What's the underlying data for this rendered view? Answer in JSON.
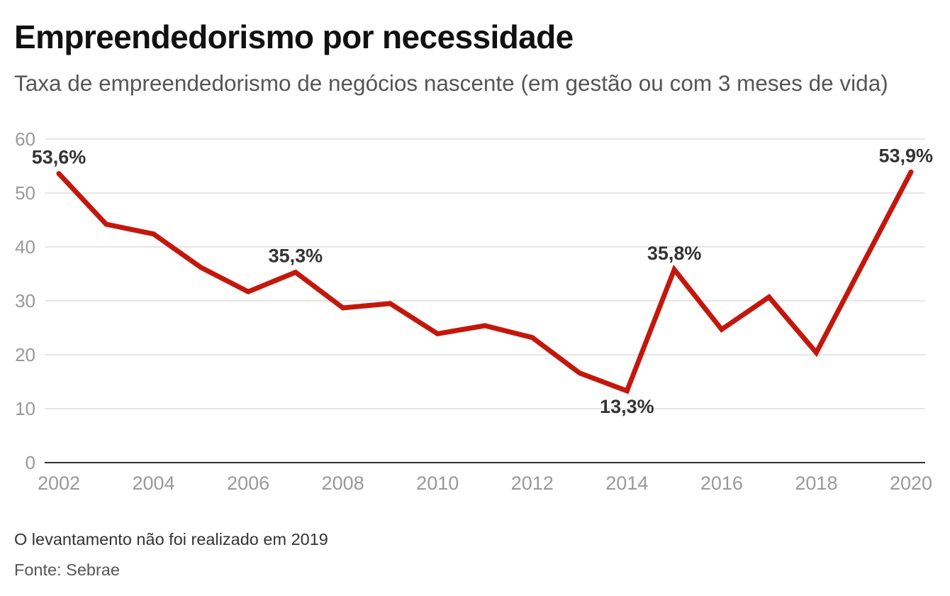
{
  "colors": {
    "background": "#ffffff",
    "line": "#c4170c",
    "grid": "#dedede",
    "axis": "#333333",
    "tick_text": "#999999",
    "data_label": "#333333",
    "title": "#111111",
    "subtitle": "#555555",
    "note": "#333333",
    "source": "#555555"
  },
  "chart_data": {
    "type": "line",
    "title": "Empreendedorismo por necessidade",
    "subtitle": "Taxa de empreendedorismo de negócios nascente (em gestão ou com 3 meses de vida)",
    "x": [
      2002,
      2003,
      2004,
      2005,
      2006,
      2007,
      2008,
      2009,
      2010,
      2011,
      2012,
      2013,
      2014,
      2015,
      2016,
      2017,
      2018,
      2019,
      2020
    ],
    "series": [
      {
        "values": [
          53.6,
          44.2,
          42.4,
          36.2,
          31.7,
          35.3,
          28.7,
          29.5,
          23.9,
          25.4,
          23.2,
          16.6,
          13.3,
          35.8,
          24.7,
          30.7,
          20.4,
          null,
          53.9
        ]
      }
    ],
    "xlim": [
      2002,
      2020
    ],
    "xticks": [
      2002,
      2004,
      2006,
      2008,
      2010,
      2012,
      2014,
      2016,
      2018,
      2020
    ],
    "ylim": [
      0,
      60
    ],
    "yticks": [
      0,
      10,
      20,
      30,
      40,
      50,
      60
    ],
    "grid": true,
    "annotations": [
      {
        "x": 2002,
        "text": "53,6%"
      },
      {
        "x": 2007,
        "text": "35,3%"
      },
      {
        "x": 2014,
        "text": "13,3%"
      },
      {
        "x": 2015,
        "text": "35,8%"
      },
      {
        "x": 2020,
        "text": "53,9%"
      }
    ],
    "note": "O levantamento não foi realizado em 2019",
    "source": "Fonte: Sebrae"
  }
}
